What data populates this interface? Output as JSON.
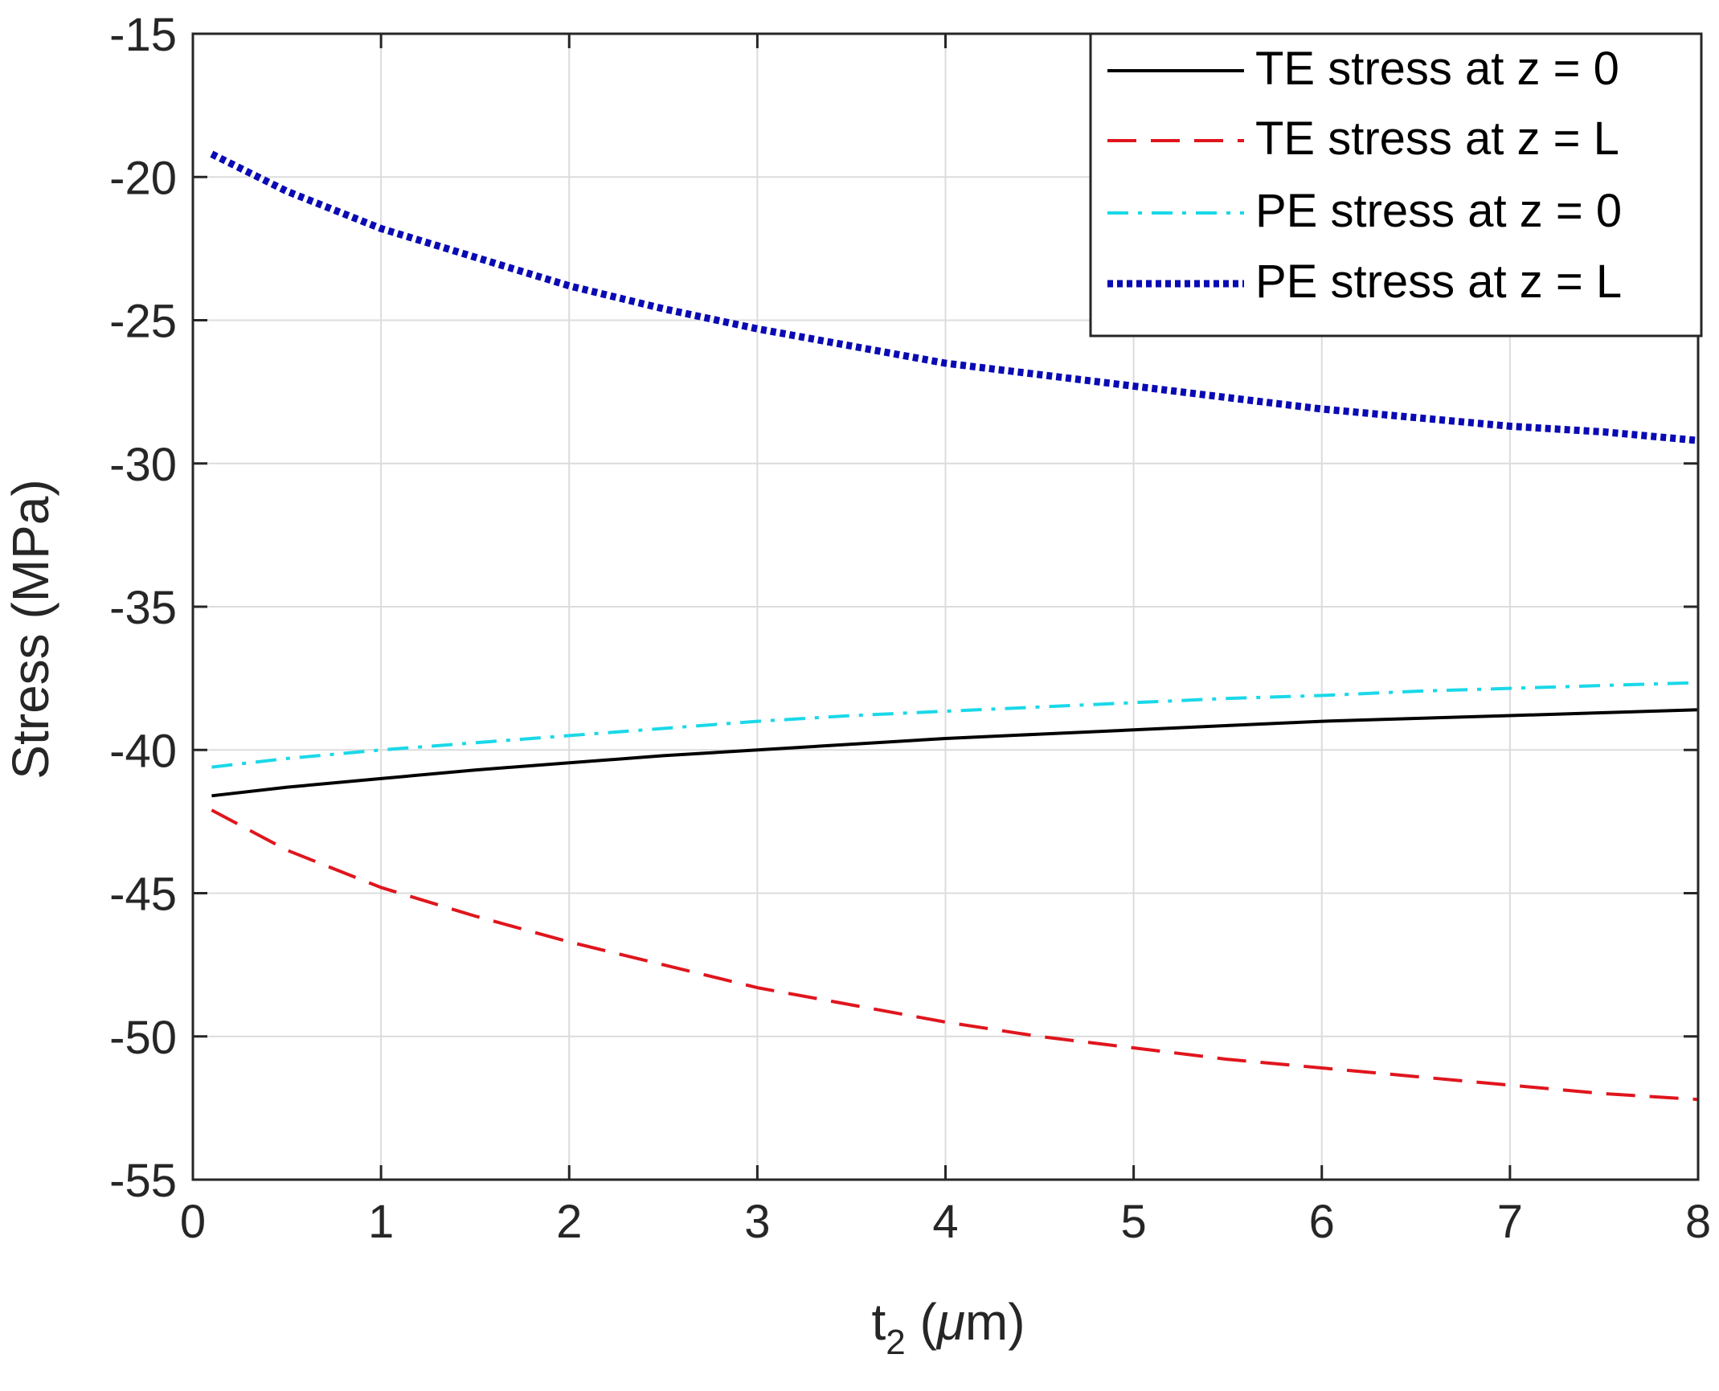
{
  "chart_data": {
    "type": "line",
    "title": "",
    "xlabel": {
      "main": "t",
      "subscript": "2",
      "unit_open": "(",
      "unit_mu": "μ",
      "unit_rest": "m)"
    },
    "ylabel": "Stress (MPa)",
    "xlim": [
      0,
      8
    ],
    "ylim": [
      -55,
      -15
    ],
    "xticks": [
      0,
      1,
      2,
      3,
      4,
      5,
      6,
      7,
      8
    ],
    "yticks": [
      -55,
      -50,
      -45,
      -40,
      -35,
      -30,
      -25,
      -20,
      -15
    ],
    "grid": true,
    "legend_position": "top-right",
    "x": [
      0.1,
      0.5,
      1,
      1.5,
      2,
      2.5,
      3,
      3.5,
      4,
      4.5,
      5,
      5.5,
      6,
      6.5,
      7,
      7.5,
      8
    ],
    "series": [
      {
        "name": "TE stress at z = 0",
        "color": "#000000",
        "style": "solid",
        "values": [
          -41.6,
          -41.3,
          -41.0,
          -40.7,
          -40.45,
          -40.2,
          -40.0,
          -39.8,
          -39.6,
          -39.45,
          -39.3,
          -39.15,
          -39.0,
          -38.9,
          -38.8,
          -38.7,
          -38.6
        ]
      },
      {
        "name": "TE stress at z = L",
        "color": "#e0151d",
        "style": "dashed",
        "values": [
          -42.1,
          -43.5,
          -44.8,
          -45.8,
          -46.7,
          -47.5,
          -48.3,
          -48.9,
          -49.5,
          -50.0,
          -50.4,
          -50.8,
          -51.1,
          -51.4,
          -51.7,
          -52.0,
          -52.2
        ]
      },
      {
        "name": "PE stress at z = 0",
        "color": "#1ad8e8",
        "style": "dashdot",
        "values": [
          -40.6,
          -40.3,
          -40.0,
          -39.75,
          -39.5,
          -39.25,
          -39.0,
          -38.8,
          -38.65,
          -38.5,
          -38.35,
          -38.2,
          -38.1,
          -37.95,
          -37.85,
          -37.75,
          -37.65
        ]
      },
      {
        "name": "PE stress at z = L",
        "color": "#0a0ab4",
        "style": "dotted",
        "values": [
          -19.2,
          -20.5,
          -21.8,
          -22.8,
          -23.8,
          -24.6,
          -25.3,
          -25.9,
          -26.5,
          -26.9,
          -27.3,
          -27.7,
          -28.1,
          -28.4,
          -28.7,
          -28.9,
          -29.2
        ]
      }
    ]
  }
}
